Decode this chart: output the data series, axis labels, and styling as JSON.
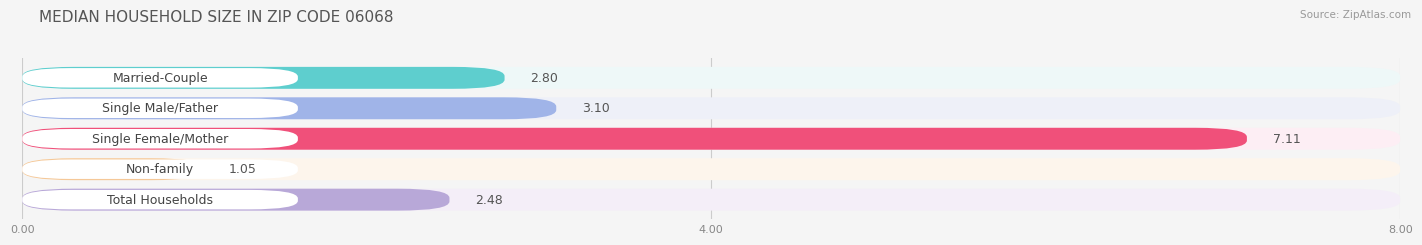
{
  "title": "MEDIAN HOUSEHOLD SIZE IN ZIP CODE 06068",
  "source": "Source: ZipAtlas.com",
  "categories": [
    "Married-Couple",
    "Single Male/Father",
    "Single Female/Mother",
    "Non-family",
    "Total Households"
  ],
  "values": [
    2.8,
    3.1,
    7.11,
    1.05,
    2.48
  ],
  "bar_colors": [
    "#5ecece",
    "#a0b4e8",
    "#f0507a",
    "#f5c898",
    "#b8a8d8"
  ],
  "row_bg_colors": [
    "#eef8f8",
    "#eef0f8",
    "#fdeef4",
    "#fdf5ec",
    "#f4eef8"
  ],
  "label_pill_color": "#ffffff",
  "xlim": [
    0,
    8.0
  ],
  "xticks": [
    0.0,
    4.0,
    8.0
  ],
  "xticklabels": [
    "0.00",
    "4.00",
    "8.00"
  ],
  "title_fontsize": 11,
  "label_fontsize": 9,
  "value_fontsize": 9,
  "background_color": "#f5f5f5"
}
